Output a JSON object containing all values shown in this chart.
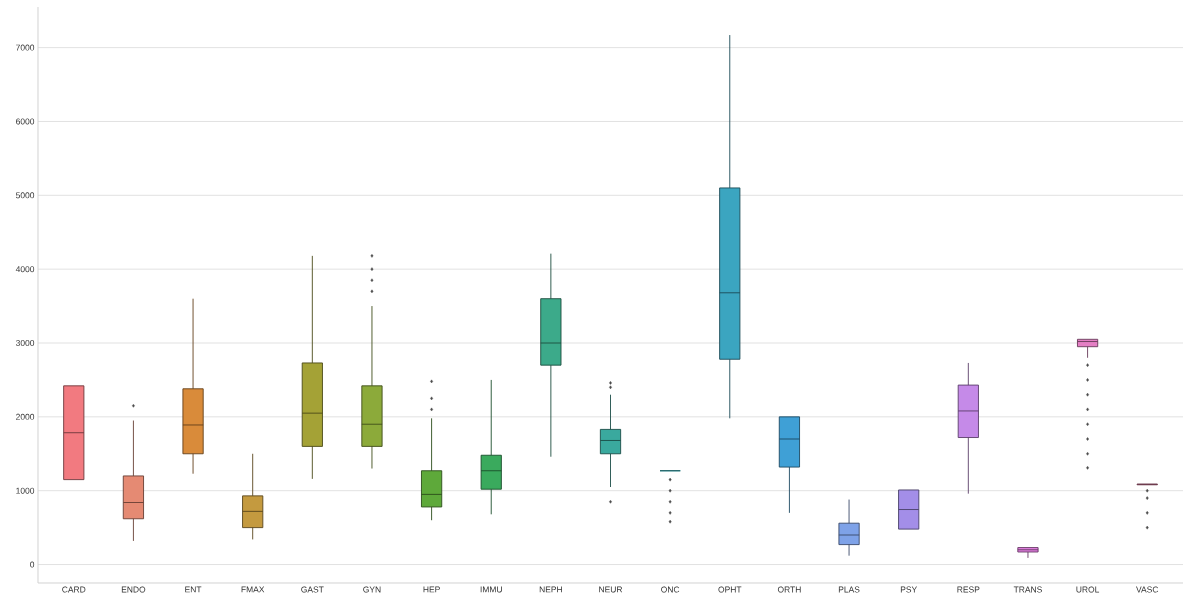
{
  "chart_data": {
    "type": "box",
    "categories": [
      "CARD",
      "ENDO",
      "ENT",
      "FMAX",
      "GAST",
      "GYN",
      "HEP",
      "IMMU",
      "NEPH",
      "NEUR",
      "ONC",
      "OPHT",
      "ORTH",
      "PLAS",
      "PSY",
      "RESP",
      "TRANS",
      "UROL",
      "VASC"
    ],
    "boxes": [
      {
        "low": 1150,
        "q1": 1150,
        "median": 1785,
        "q3": 2420,
        "high": 2420
      },
      {
        "low": 320,
        "q1": 620,
        "median": 840,
        "q3": 1200,
        "high": 1950,
        "outliers": [
          2150
        ]
      },
      {
        "low": 1230,
        "q1": 1500,
        "median": 1890,
        "q3": 2380,
        "high": 3600
      },
      {
        "low": 340,
        "q1": 500,
        "median": 720,
        "q3": 930,
        "high": 1500
      },
      {
        "low": 1160,
        "q1": 1600,
        "median": 2050,
        "q3": 2730,
        "high": 4180
      },
      {
        "low": 1300,
        "q1": 1600,
        "median": 1900,
        "q3": 2420,
        "high": 3500,
        "outliers": [
          3700,
          3850,
          4000,
          4180
        ]
      },
      {
        "low": 600,
        "q1": 780,
        "median": 950,
        "q3": 1270,
        "high": 1980,
        "outliers": [
          2100,
          2250,
          2480
        ]
      },
      {
        "low": 680,
        "q1": 1020,
        "median": 1270,
        "q3": 1480,
        "high": 2500
      },
      {
        "low": 1460,
        "q1": 2700,
        "median": 3000,
        "q3": 3600,
        "high": 4210
      },
      {
        "low": 1050,
        "q1": 1500,
        "median": 1680,
        "q3": 1830,
        "high": 2300,
        "outliers": [
          850,
          2400,
          2460
        ]
      },
      {
        "low": 1270,
        "q1": 1270,
        "median": 1270,
        "q3": 1270,
        "high": 1270,
        "outliers": [
          580,
          700,
          850,
          1000,
          1150
        ]
      },
      {
        "low": 1980,
        "q1": 2780,
        "median": 3680,
        "q3": 5100,
        "high": 7170
      },
      {
        "low": 700,
        "q1": 1320,
        "median": 1700,
        "q3": 2000,
        "high": 2000
      },
      {
        "low": 120,
        "q1": 270,
        "median": 400,
        "q3": 560,
        "high": 880
      },
      {
        "low": 480,
        "q1": 480,
        "median": 745,
        "q3": 1010,
        "high": 1010
      },
      {
        "low": 960,
        "q1": 1720,
        "median": 2080,
        "q3": 2430,
        "high": 2730
      },
      {
        "low": 90,
        "q1": 170,
        "median": 200,
        "q3": 230,
        "high": 230
      },
      {
        "low": 2800,
        "q1": 2950,
        "median": 3020,
        "q3": 3050,
        "high": 3050,
        "outliers": [
          1310,
          1500,
          1700,
          1900,
          2100,
          2300,
          2500,
          2700
        ]
      },
      {
        "low": 1080,
        "q1": 1080,
        "median": 1085,
        "q3": 1090,
        "high": 1090,
        "outliers": [
          500,
          700,
          900,
          1000
        ]
      }
    ],
    "colors": [
      "#f27a80",
      "#e58a73",
      "#d98b3a",
      "#c49a3f",
      "#a4a236",
      "#8caa3a",
      "#5ea93a",
      "#3aaa5d",
      "#3caa8a",
      "#3aa99e",
      "#3aa7ae",
      "#3ba5c0",
      "#3fa0d6",
      "#7ea2e8",
      "#a38ee8",
      "#c58ae8",
      "#e27fe0",
      "#e47fc4",
      "#ec7ea6"
    ],
    "ylim": [
      -250,
      7550
    ],
    "yticks": [
      0,
      1000,
      2000,
      3000,
      4000,
      5000,
      6000,
      7000
    ],
    "grid": "y",
    "marker": "diamond"
  }
}
